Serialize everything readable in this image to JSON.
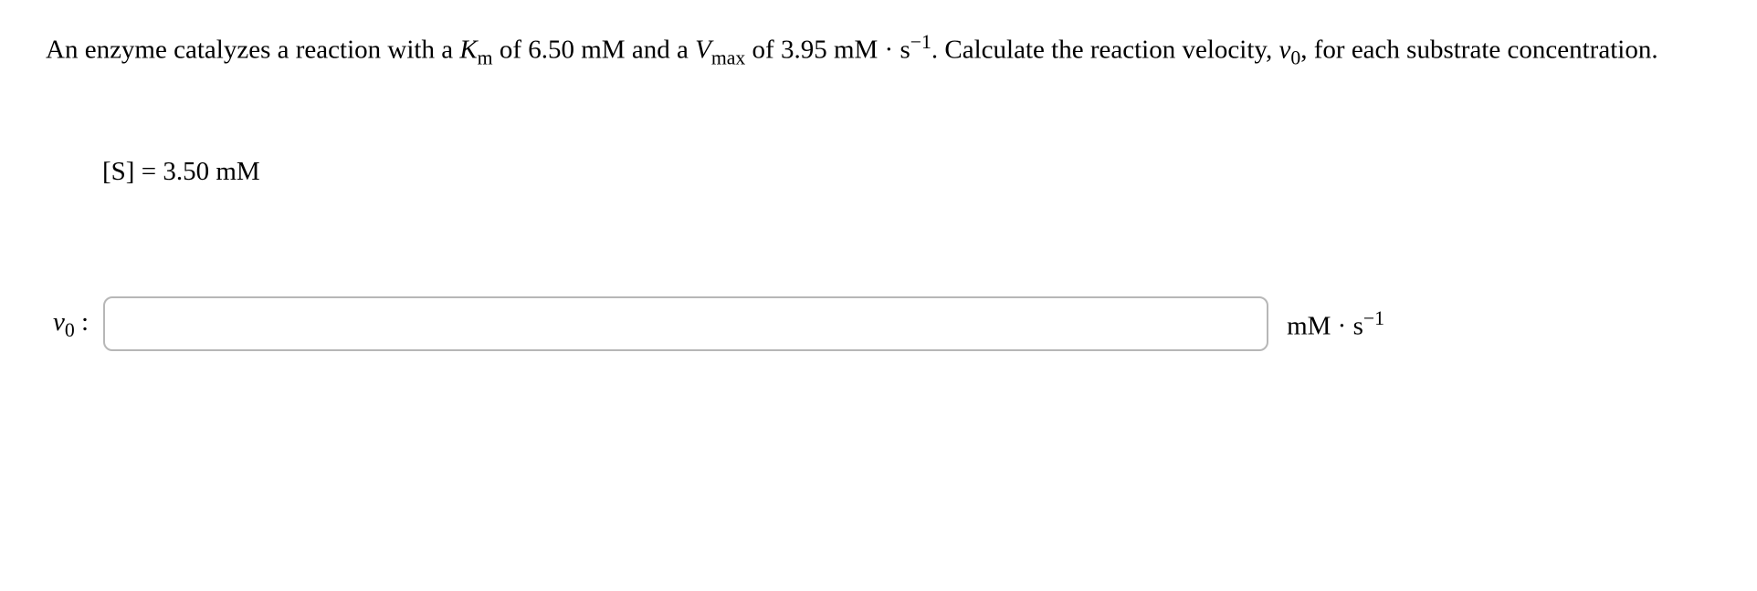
{
  "question": {
    "pre": "An enzyme catalyzes a reaction with a ",
    "km_sym_main": "K",
    "km_sym_sub": "m",
    "km_join": " of ",
    "km_value": "6.50 mM",
    "mid": " and a ",
    "vmax_sym_main": "V",
    "vmax_sym_sub": "max",
    "vmax_join": " of ",
    "vmax_value": "3.95 mM · s",
    "vmax_exp": "−1",
    "post1": ". Calculate the reaction velocity, ",
    "v0_main": "v",
    "v0_sub": "0",
    "post2": ", for each substrate concentration."
  },
  "given": {
    "lhs": "[S] = ",
    "value": "3.50 mM"
  },
  "answer": {
    "label_main": "v",
    "label_sub": "0",
    "label_colon": " :",
    "input_value": "",
    "unit_text": "mM · s",
    "unit_exp": "−1"
  },
  "style": {
    "input_border_color": "#b7b7b7",
    "background": "#ffffff",
    "font_size_main": 29
  }
}
